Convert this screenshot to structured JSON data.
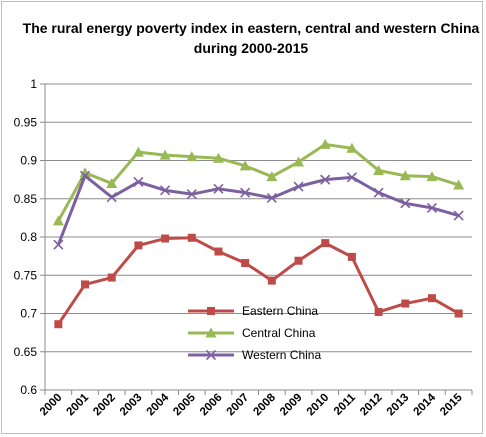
{
  "chart_data": {
    "type": "line",
    "title": "The rural energy poverty index in eastern, central and western China during 2000-2015",
    "title_lines": [
      "The rural energy poverty index in eastern, central and western China",
      "during 2000-2015"
    ],
    "xlabel": "",
    "ylabel": "",
    "categories": [
      "2000",
      "2001",
      "2002",
      "2003",
      "2004",
      "2005",
      "2006",
      "2007",
      "2008",
      "2009",
      "2010",
      "2011",
      "2012",
      "2013",
      "2014",
      "2015"
    ],
    "ylim": [
      0.6,
      1.0
    ],
    "yticks": [
      "0.6",
      "0.65",
      "0.7",
      "0.75",
      "0.8",
      "0.85",
      "0.9",
      "0.95",
      "1"
    ],
    "grid": true,
    "legend_position": "inside-bottom-center",
    "series": [
      {
        "name": "Eastern China",
        "color": "#be4b48",
        "marker": "square",
        "values": [
          0.686,
          0.738,
          0.747,
          0.789,
          0.798,
          0.799,
          0.781,
          0.766,
          0.743,
          0.769,
          0.792,
          0.774,
          0.702,
          0.713,
          0.72,
          0.7
        ]
      },
      {
        "name": "Central China",
        "color": "#98b954",
        "marker": "triangle",
        "values": [
          0.821,
          0.884,
          0.87,
          0.911,
          0.907,
          0.905,
          0.903,
          0.893,
          0.879,
          0.898,
          0.921,
          0.916,
          0.887,
          0.88,
          0.879,
          0.868
        ]
      },
      {
        "name": "Western China",
        "color": "#7d60a0",
        "marker": "x",
        "values": [
          0.79,
          0.88,
          0.852,
          0.872,
          0.861,
          0.856,
          0.863,
          0.858,
          0.851,
          0.866,
          0.875,
          0.878,
          0.858,
          0.844,
          0.838,
          0.828
        ]
      }
    ]
  }
}
